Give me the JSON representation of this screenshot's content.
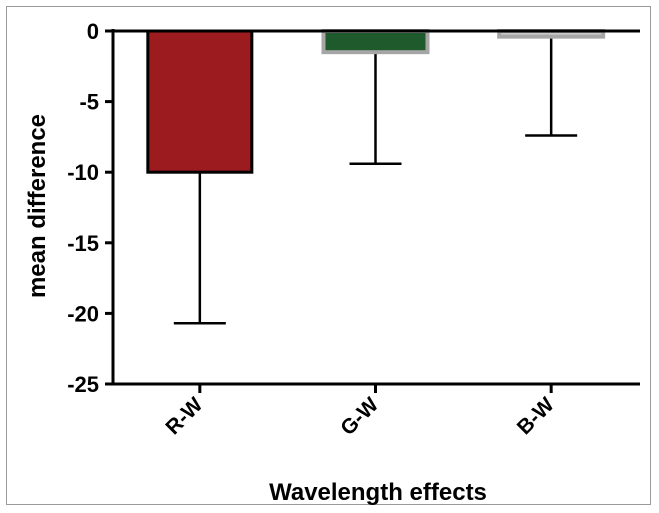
{
  "chart_data": {
    "type": "bar",
    "title": "",
    "xlabel": "Wavelength effects",
    "ylabel": "mean difference",
    "categories": [
      "R-W",
      "G-W",
      "B-W"
    ],
    "values": [
      -10,
      -1.5,
      -0.4
    ],
    "error_low": [
      -20.7,
      -9.4,
      -7.4
    ],
    "ylim": [
      -25,
      0
    ],
    "yticks": [
      0,
      -5,
      -10,
      -15,
      -20,
      -25
    ],
    "ytick_labels": [
      "0",
      "-5",
      "-10",
      "-15",
      "-20",
      "-25"
    ],
    "grid": false,
    "legend": "none",
    "colors": {
      "fill": [
        "#9b1b1f",
        "#1f5a2c",
        "#c9c9c9"
      ],
      "edge": [
        "#000000",
        "#a6a6a6",
        "#a6a6a6"
      ]
    }
  }
}
